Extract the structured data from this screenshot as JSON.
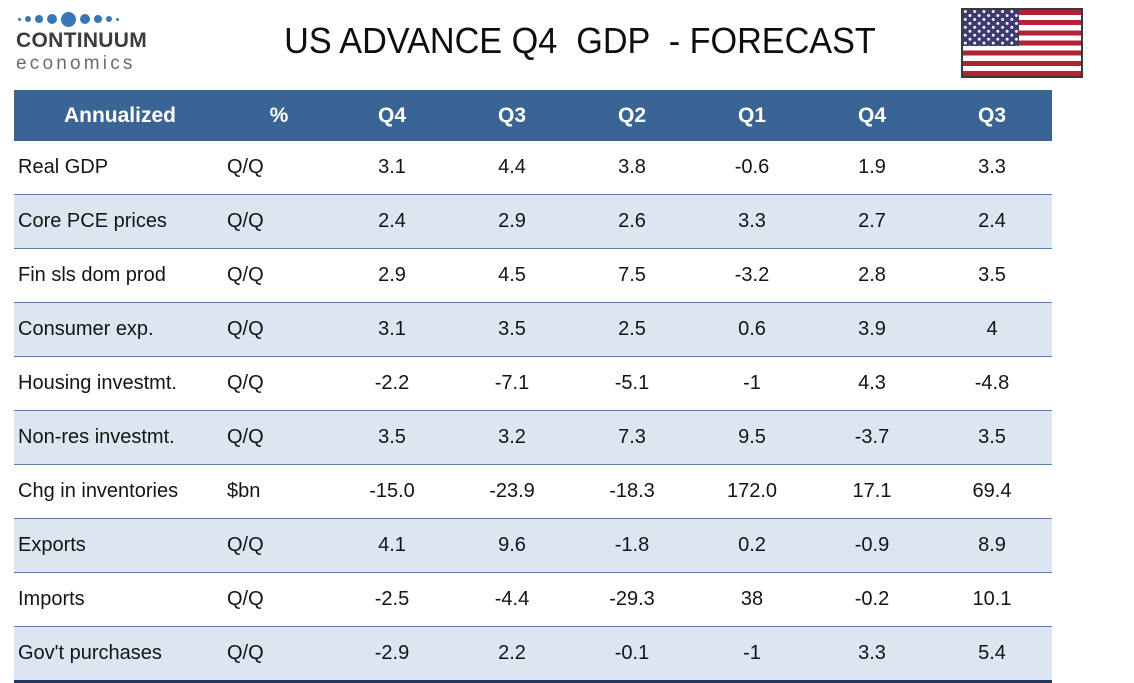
{
  "brand": {
    "line1": "CONTINUUM",
    "line2": "economics"
  },
  "title": "US ADVANCE Q4  GDP  - FORECAST",
  "icons": {
    "logo-dots-icon": "row of nine blue dots, largest in the centre",
    "us-flag-icon": "United States flag with dark border"
  },
  "colors": {
    "header_bg": "#3A6494",
    "header_text": "#FFFFFF",
    "row_shade": "#DCE6F1",
    "row_divider": "#5B7FAD",
    "table_bottom_border": "#1F3864",
    "logo_blue": "#3878B0",
    "flag_red": "#B22234",
    "flag_canton": "#3C3B6E"
  },
  "chart_data": {
    "type": "table",
    "title": "US ADVANCE Q4  GDP  - FORECAST",
    "columns": [
      "Annualized",
      "%",
      "Q4",
      "Q3",
      "Q2",
      "Q1",
      "Q4",
      "Q3"
    ],
    "rows": [
      {
        "label": "Real GDP",
        "unit": "Q/Q",
        "values": [
          "3.1",
          "4.4",
          "3.8",
          "-0.6",
          "1.9",
          "3.3"
        ]
      },
      {
        "label": "Core PCE prices",
        "unit": "Q/Q",
        "values": [
          "2.4",
          "2.9",
          "2.6",
          "3.3",
          "2.7",
          "2.4"
        ]
      },
      {
        "label": "Fin sls dom prod",
        "unit": "Q/Q",
        "values": [
          "2.9",
          "4.5",
          "7.5",
          "-3.2",
          "2.8",
          "3.5"
        ]
      },
      {
        "label": "Consumer exp.",
        "unit": "Q/Q",
        "values": [
          "3.1",
          "3.5",
          "2.5",
          "0.6",
          "3.9",
          "4"
        ]
      },
      {
        "label": "Housing investmt.",
        "unit": "Q/Q",
        "values": [
          "-2.2",
          "-7.1",
          "-5.1",
          "-1",
          "4.3",
          "-4.8"
        ]
      },
      {
        "label": "Non-res investmt.",
        "unit": "Q/Q",
        "values": [
          "3.5",
          "3.2",
          "7.3",
          "9.5",
          "-3.7",
          "3.5"
        ]
      },
      {
        "label": "Chg in inventories",
        "unit": "$bn",
        "values": [
          "-15.0",
          "-23.9",
          "-18.3",
          "172.0",
          "17.1",
          "69.4"
        ]
      },
      {
        "label": "Exports",
        "unit": "Q/Q",
        "values": [
          "4.1",
          "9.6",
          "-1.8",
          "0.2",
          "-0.9",
          "8.9"
        ]
      },
      {
        "label": "Imports",
        "unit": "Q/Q",
        "values": [
          "-2.5",
          "-4.4",
          "-29.3",
          "38",
          "-0.2",
          "10.1"
        ]
      },
      {
        "label": "Gov't purchases",
        "unit": "Q/Q",
        "values": [
          "-2.9",
          "2.2",
          "-0.1",
          "-1",
          "3.3",
          "5.4"
        ]
      }
    ],
    "layout": {
      "zebra_shaded_row_indexes": [
        1,
        3,
        5,
        7,
        9
      ],
      "first_two_columns_left_aligned": true,
      "numeric_columns_centered": true
    }
  }
}
